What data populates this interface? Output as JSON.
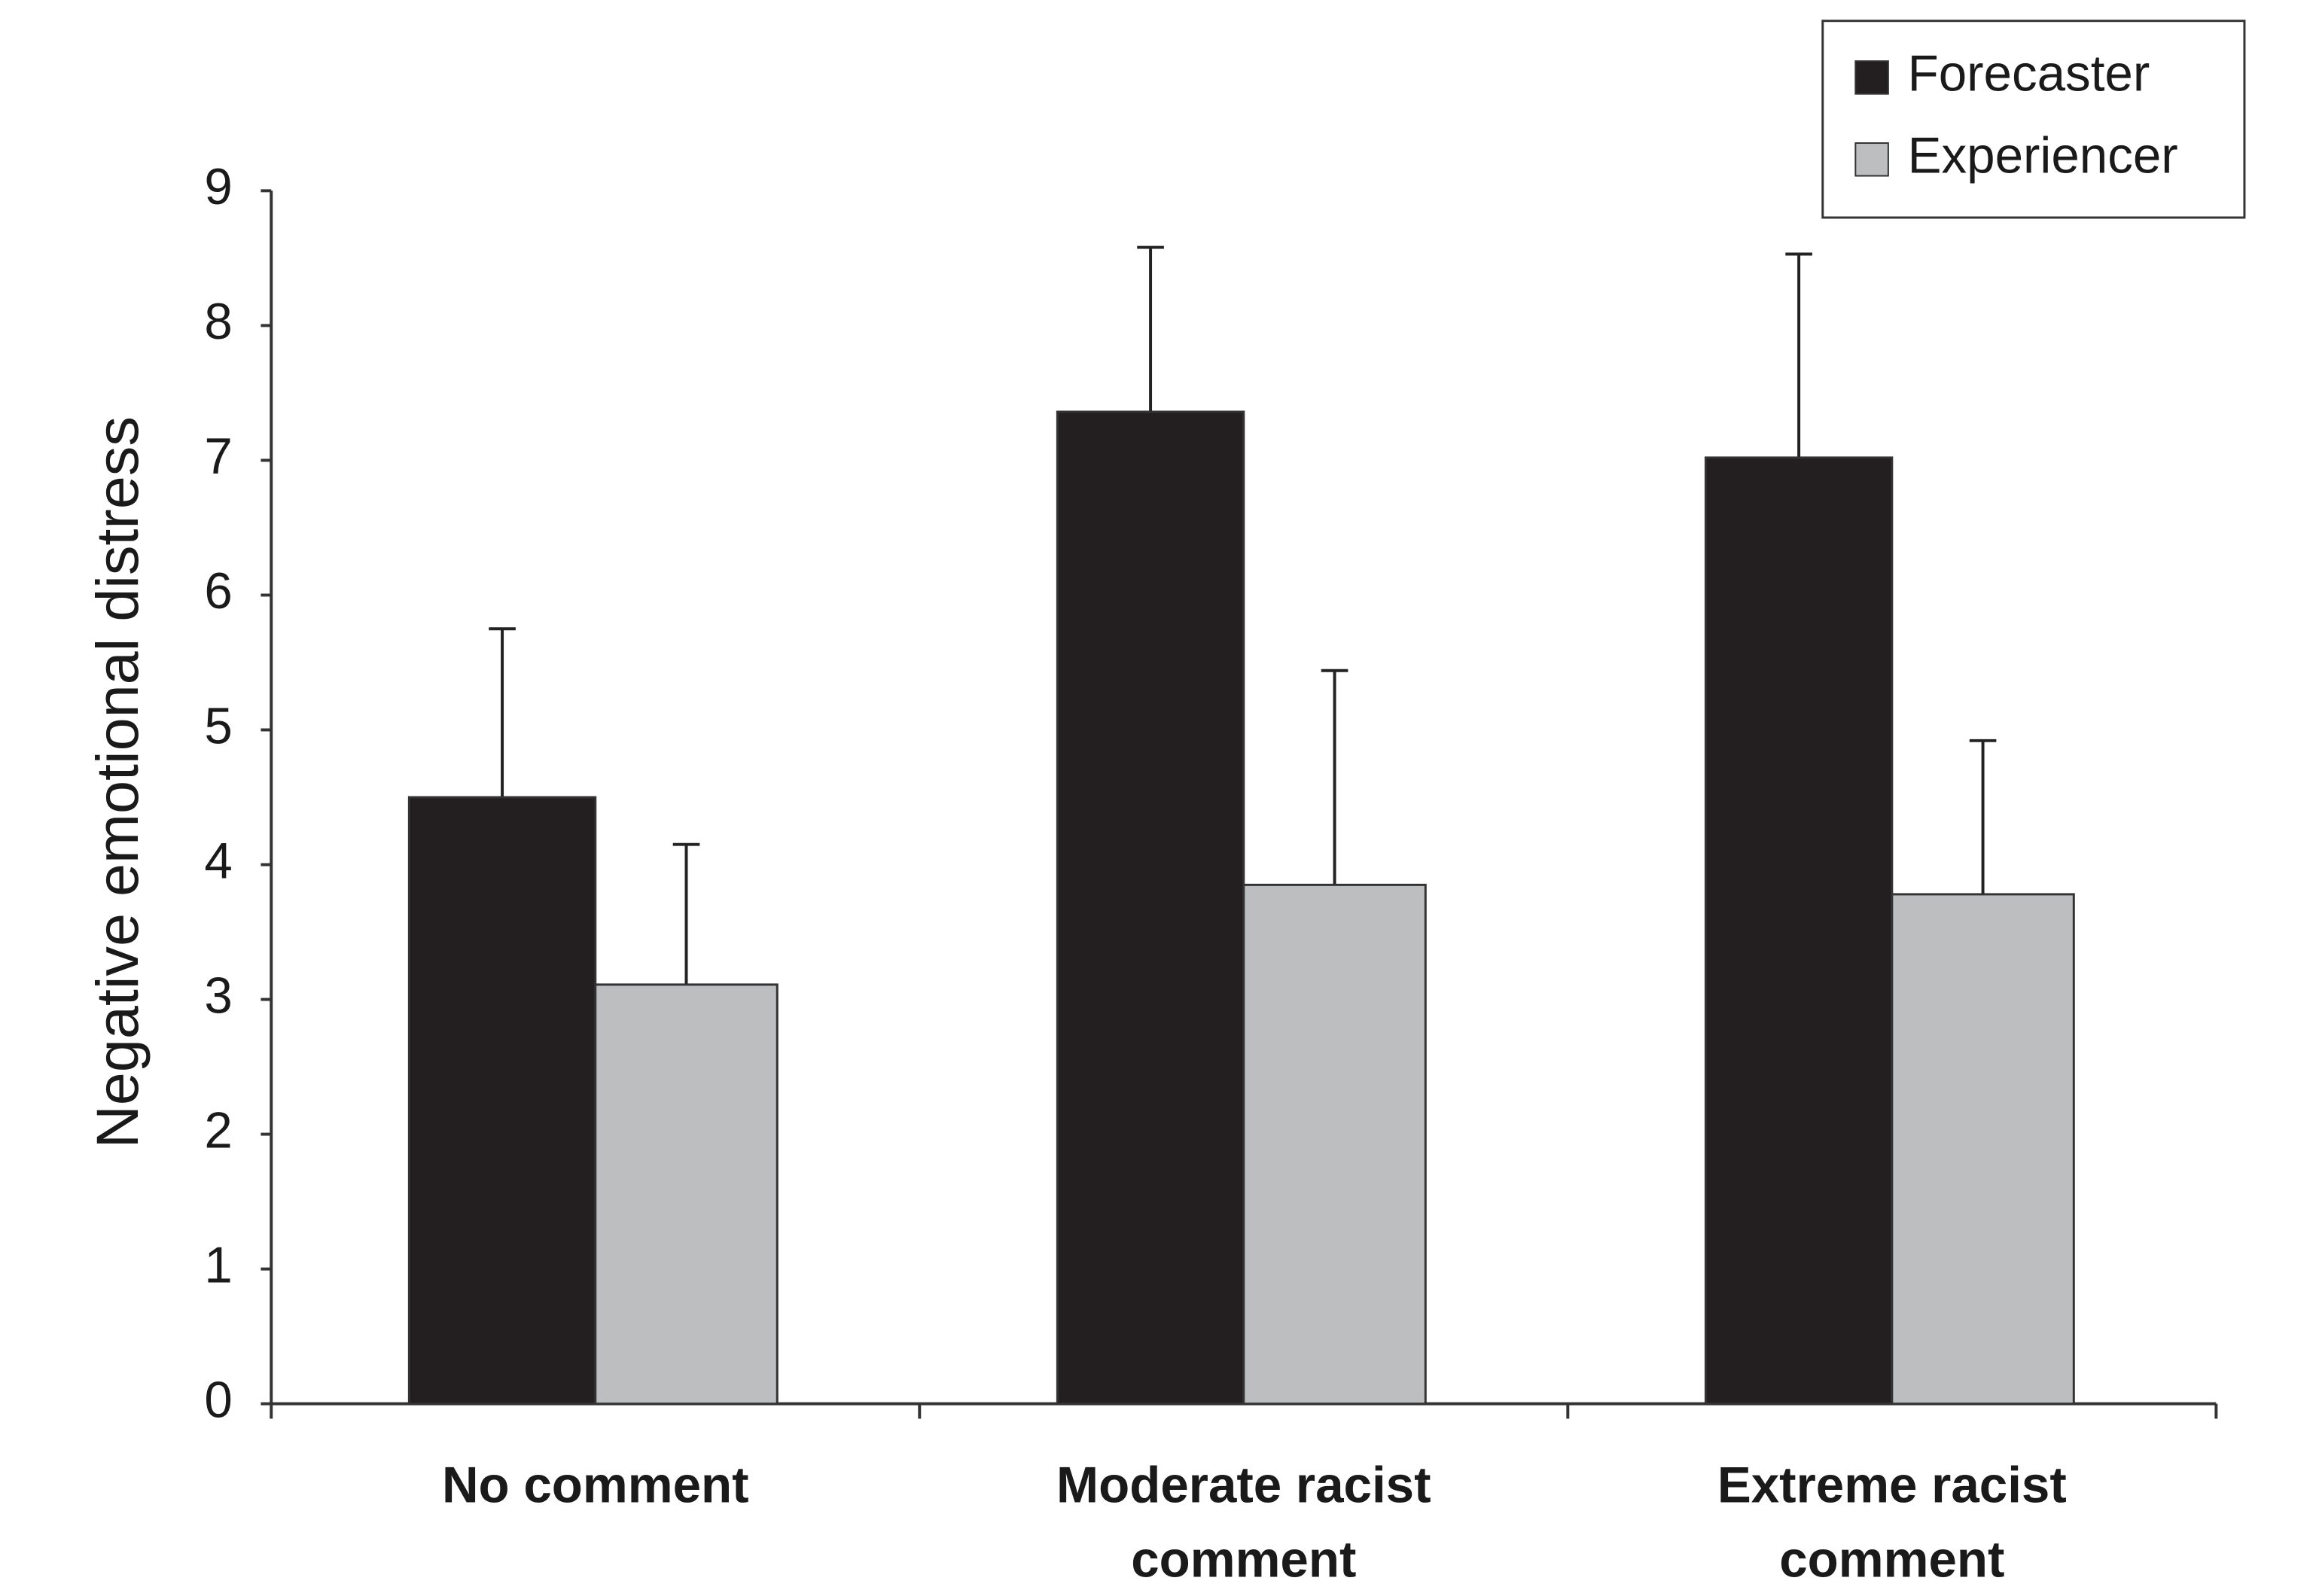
{
  "chart_data": {
    "type": "bar",
    "y_label": "Negative emotional distress",
    "categories": [
      "No comment",
      "Moderate racist comment",
      "Extreme racist comment"
    ],
    "series": [
      {
        "name": "Forecaster",
        "color": "#231f20",
        "values": [
          4.5,
          7.36,
          7.02
        ],
        "errors": [
          1.25,
          1.22,
          1.51
        ]
      },
      {
        "name": "Experiencer",
        "color": "#bcbec0",
        "values": [
          3.11,
          3.85,
          3.78
        ],
        "errors": [
          1.04,
          1.59,
          1.14
        ]
      }
    ],
    "ylim": [
      0,
      9
    ],
    "yticks": [
      0,
      1,
      2,
      3,
      4,
      5,
      6,
      7,
      8,
      9
    ],
    "legend": "top-right",
    "grid": false
  }
}
